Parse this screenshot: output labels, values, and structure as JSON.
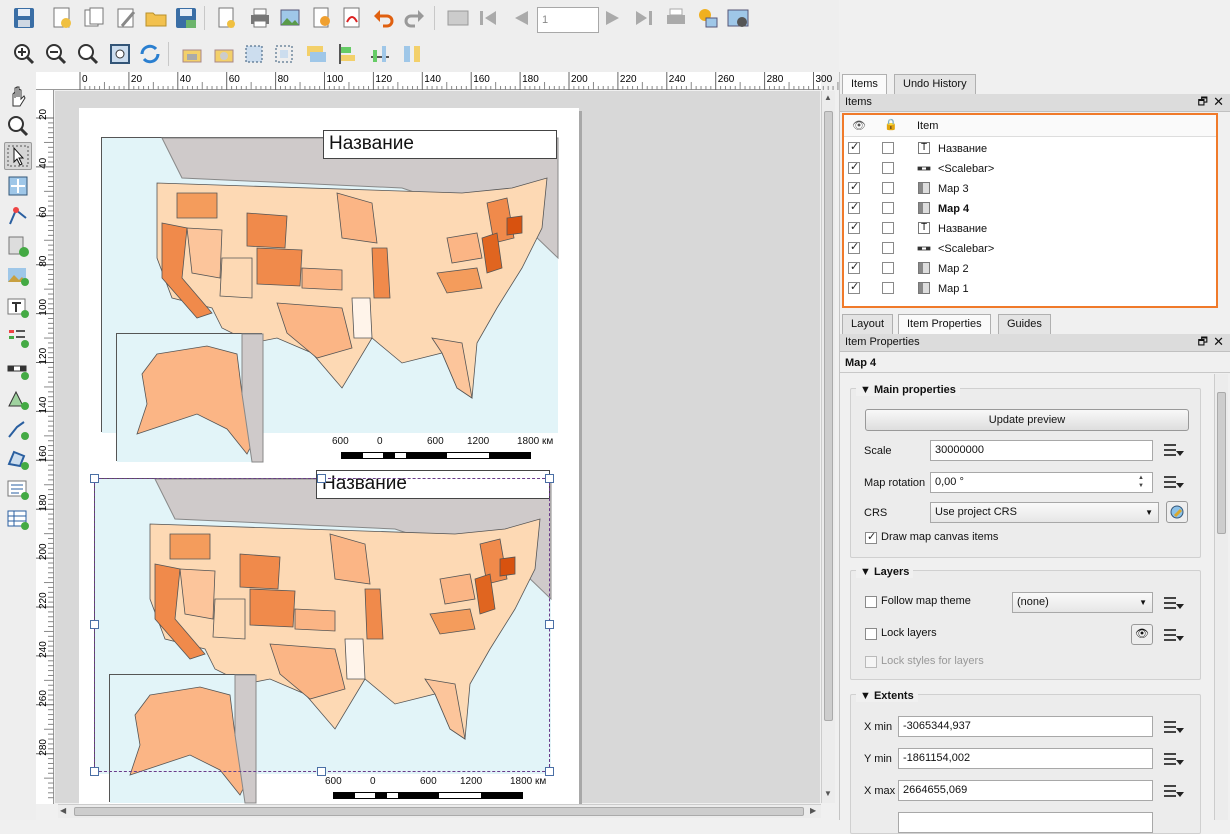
{
  "toolbar": {
    "page_number": "1"
  },
  "ruler": {
    "h_ticks": [
      "0",
      "20",
      "40",
      "60",
      "80",
      "100",
      "120",
      "140",
      "160",
      "180",
      "200",
      "220",
      "240",
      "260",
      "280",
      "300"
    ],
    "v_ticks": [
      "20",
      "40",
      "60",
      "80",
      "100",
      "120",
      "140",
      "160",
      "180",
      "200",
      "220",
      "240",
      "260",
      "280"
    ]
  },
  "layout": {
    "map_top": {
      "title": "Название",
      "scale_labels": [
        "600",
        "0",
        "600",
        "1200",
        "1800 км"
      ]
    },
    "map_bottom": {
      "title": "Название",
      "scale_labels": [
        "600",
        "0",
        "600",
        "1200",
        "1800 км"
      ]
    }
  },
  "panel": {
    "tabs_top": [
      "Items",
      "Undo History"
    ],
    "items_dock_title": "Items",
    "items_header": {
      "item": "Item"
    },
    "items": [
      {
        "name": "Название",
        "type": "label",
        "visible": true,
        "locked": false
      },
      {
        "name": "<Scalebar>",
        "type": "scalebar",
        "visible": true,
        "locked": false
      },
      {
        "name": "Map 3",
        "type": "map",
        "visible": true,
        "locked": false
      },
      {
        "name": "Map 4",
        "type": "map",
        "visible": true,
        "locked": false,
        "selected": true
      },
      {
        "name": "Название",
        "type": "label",
        "visible": true,
        "locked": false
      },
      {
        "name": "<Scalebar>",
        "type": "scalebar",
        "visible": true,
        "locked": false
      },
      {
        "name": "Map 2",
        "type": "map",
        "visible": true,
        "locked": false
      },
      {
        "name": "Map 1",
        "type": "map",
        "visible": true,
        "locked": false
      }
    ],
    "tabs_bottom": [
      "Layout",
      "Item Properties",
      "Guides"
    ],
    "props_dock_title": "Item Properties",
    "selected_item": "Map 4",
    "main": {
      "heading": "Main properties",
      "update_button": "Update preview",
      "scale_label": "Scale",
      "scale_value": "30000000",
      "rotation_label": "Map rotation",
      "rotation_value": "0,00 °",
      "crs_label": "CRS",
      "crs_value": "Use project CRS",
      "draw_items_label": "Draw map canvas items"
    },
    "layers": {
      "heading": "Layers",
      "follow_theme_label": "Follow map theme",
      "theme_value": "(none)",
      "lock_layers_label": "Lock layers",
      "lock_styles_label": "Lock styles for layers"
    },
    "extents": {
      "heading": "Extents",
      "xmin_label": "X min",
      "xmin_value": "-3065344,937",
      "ymin_label": "Y min",
      "ymin_value": "-1861154,002",
      "xmax_label": "X max",
      "xmax_value": "2664655,069"
    }
  }
}
